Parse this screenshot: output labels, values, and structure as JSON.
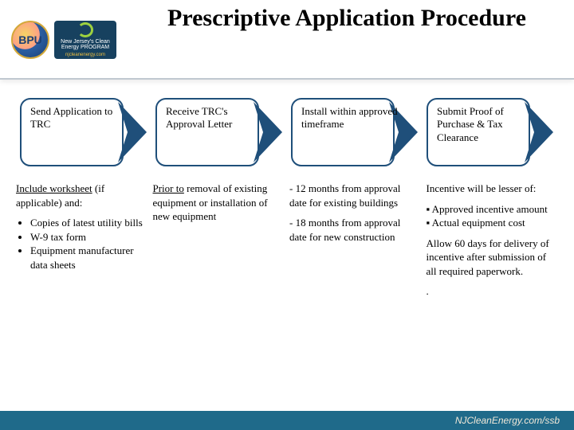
{
  "title": {
    "text": "Prescriptive Application Procedure",
    "fontsize": 30,
    "color": "#000000"
  },
  "header": {
    "border_color": "#c0c8d0",
    "band_height": 100
  },
  "logos": {
    "bpu_text": "BPU",
    "clean_energy_lines": "New Jersey's Clean Energy PROGRAM",
    "clean_energy_url": "njcleanenergy.com",
    "bpu_bg": "#1c3f73",
    "clean_bg": "#17415f",
    "swirl_color": "#9dd13f"
  },
  "flow": {
    "box_fill": "#ffffff",
    "box_stroke": "#1f4f7a",
    "arrow_fill": "#1f4f7a",
    "label_color": "#000000",
    "label_fontsize": 13,
    "steps": [
      {
        "label": "Send Application to TRC"
      },
      {
        "label": "Receive TRC's Approval Letter"
      },
      {
        "label": "Install within approved timeframe"
      },
      {
        "label": "Submit Proof of Purchase & Tax Clearance"
      }
    ]
  },
  "details": {
    "fontsize": 13,
    "color": "#000000",
    "columns": [
      {
        "lead_underlined": "Include worksheet",
        "lead_rest": " (if applicable) and:",
        "bullets": [
          "Copies of latest utility bills",
          "W-9 tax form",
          "Equipment manufacturer data sheets"
        ]
      },
      {
        "lead_underlined": "Prior to",
        "lead_rest": " removal of existing equipment or installation of new equipment"
      },
      {
        "paras": [
          "- 12 months from approval date for existing buildings",
          "- 18 months from approval date for new construction"
        ]
      },
      {
        "lead_plain": "Incentive will be lesser of:",
        "square_bullets": [
          "Approved incentive amount",
          "Actual equipment cost"
        ],
        "tail": "Allow 60 days for delivery of incentive after submission of all required paperwork.",
        "dot": "."
      }
    ]
  },
  "footer": {
    "text": "NJCleanEnergy.com/ssb",
    "bg": "#1f6a8a",
    "color": "#f0e8d8"
  }
}
